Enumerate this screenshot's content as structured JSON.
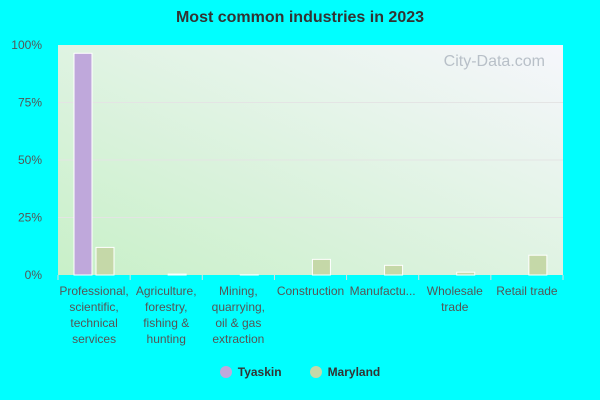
{
  "chart_data": {
    "type": "bar",
    "title": "Most common industries in 2023",
    "categories": [
      [
        "Professional,",
        "scientific,",
        "technical",
        "services"
      ],
      [
        "Agriculture,",
        "forestry,",
        "fishing &",
        "hunting"
      ],
      [
        "Mining,",
        "quarrying,",
        "oil & gas",
        "extraction"
      ],
      [
        "Construction"
      ],
      [
        "Manufactu..."
      ],
      [
        "Wholesale",
        "trade"
      ],
      [
        "Retail trade"
      ]
    ],
    "series": [
      {
        "name": "Tyaskin",
        "color": "#bfa8db",
        "values": [
          96.4,
          0,
          0,
          0,
          0,
          0,
          0
        ]
      },
      {
        "name": "Maryland",
        "color": "#c5d8a8",
        "values": [
          12.0,
          0.4,
          0.1,
          6.8,
          4.2,
          1.2,
          8.6
        ]
      }
    ],
    "ylim": [
      0,
      100
    ],
    "yticks": [
      "0%",
      "25%",
      "50%",
      "75%",
      "100%"
    ],
    "grid": true,
    "legend": "bottom",
    "watermark": "City-Data.com"
  }
}
